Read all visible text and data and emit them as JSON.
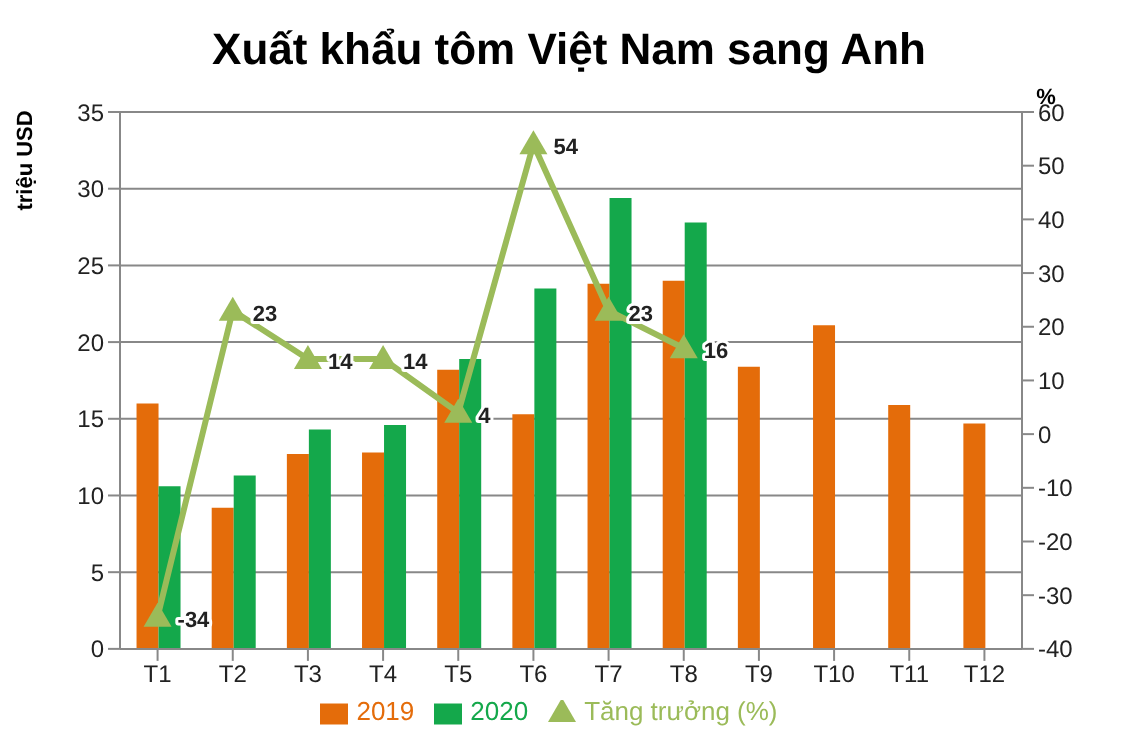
{
  "chart_data": {
    "type": "bar",
    "title": "Xuất khẩu tôm Việt Nam sang Anh",
    "ylabel": "triệu USD",
    "y2label": "%",
    "categories": [
      "T1",
      "T2",
      "T3",
      "T4",
      "T5",
      "T6",
      "T7",
      "T8",
      "T9",
      "T10",
      "T11",
      "T12"
    ],
    "series": [
      {
        "name": "2019",
        "color": "#e46c0a",
        "values": [
          16,
          9.2,
          12.7,
          12.8,
          18.2,
          15.3,
          23.8,
          24,
          18.4,
          21.1,
          15.9,
          14.7
        ]
      },
      {
        "name": "2020",
        "color": "#14a84b",
        "values": [
          10.6,
          11.3,
          14.3,
          14.6,
          18.9,
          23.5,
          29.4,
          27.8,
          null,
          null,
          null,
          null
        ]
      },
      {
        "name": "Tăng trưởng (%)",
        "type": "line",
        "axis": "y2",
        "color": "#9bbb59",
        "marker": "triangle",
        "values": [
          -34,
          23,
          14,
          14,
          4,
          54,
          23,
          16,
          null,
          null,
          null,
          null
        ],
        "value_labels": [
          "-34",
          "23",
          "14",
          "14",
          "4",
          "54",
          "23",
          "16",
          null,
          null,
          null,
          null
        ]
      }
    ],
    "ylim": [
      0,
      35
    ],
    "yticks": [
      0,
      5,
      10,
      15,
      20,
      25,
      30,
      35
    ],
    "y2lim": [
      -40,
      60
    ],
    "y2ticks": [
      -40,
      -30,
      -20,
      -10,
      0,
      10,
      20,
      30,
      40,
      50,
      60
    ],
    "grid": "y",
    "legend": "bottom"
  }
}
